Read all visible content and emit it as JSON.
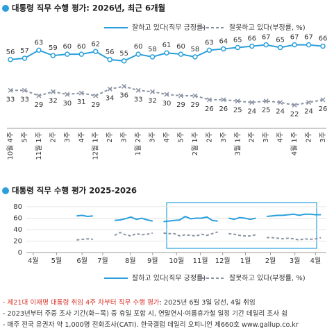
{
  "chart_data": [
    {
      "type": "line",
      "title": "대통령 직무 수행 평가: 2026년, 최근 6개월",
      "categories": [
        "10월 4주",
        "5주",
        "11월 1주",
        "2주",
        "3주",
        "4주",
        "12월 1주",
        "2주",
        "3주",
        "1월 2주",
        "3주",
        "4주",
        "5주",
        "2월 1주",
        "2주",
        "3주",
        "3월 1주",
        "2주",
        "3주",
        "4주",
        "4월 1주",
        "2주",
        "3주"
      ],
      "series": [
        {
          "name": "잘하고 있다(직무 긍정률)",
          "color": "#2a9fdc",
          "values": [
            56,
            57,
            63,
            59,
            60,
            60,
            62,
            56,
            55,
            60,
            58,
            61,
            60,
            58,
            63,
            64,
            65,
            66,
            67,
            65,
            67,
            67,
            66
          ]
        },
        {
          "name": "잘못하고 있다(부정률, %)",
          "color": "#8a94a3",
          "values": [
            33,
            33,
            29,
            32,
            30,
            31,
            29,
            34,
            36,
            33,
            32,
            30,
            29,
            29,
            26,
            26,
            25,
            24,
            25,
            24,
            22,
            24,
            26
          ]
        }
      ],
      "ylim": [
        15,
        72
      ]
    },
    {
      "type": "line",
      "title": "대통령 직무 수행 평가 2025-2026",
      "x": [
        0,
        1,
        2,
        3,
        4,
        5,
        6,
        7,
        8,
        9,
        10,
        11,
        12,
        13,
        14,
        15,
        16,
        17,
        18,
        19,
        20,
        21,
        22,
        23,
        24,
        25,
        26,
        27,
        28,
        29,
        30,
        31,
        32,
        33,
        34,
        35,
        36,
        37,
        38,
        39,
        40,
        41,
        42,
        43,
        44,
        45,
        46,
        47,
        48,
        49,
        50,
        51,
        52,
        53
      ],
      "xlim": [
        -1,
        54
      ],
      "xticks": [
        {
          "value": 0,
          "label": "4월"
        },
        {
          "value": 4.3,
          "label": "5월"
        },
        {
          "value": 9,
          "label": "6월"
        },
        {
          "value": 12.8,
          "label": "7월"
        },
        {
          "value": 17.9,
          "label": "8월"
        },
        {
          "value": 22,
          "label": "9월"
        },
        {
          "value": 26.4,
          "label": "10월"
        },
        {
          "value": 30.8,
          "label": "11월"
        },
        {
          "value": 34.9,
          "label": "12월"
        },
        {
          "value": 39.1,
          "label": "1월"
        },
        {
          "value": 43.7,
          "label": "2월"
        },
        {
          "value": 48.2,
          "label": "3월"
        },
        {
          "value": 52,
          "label": "4월"
        }
      ],
      "ylim": [
        0,
        80
      ],
      "yticks": [
        0,
        20,
        40,
        60,
        80
      ],
      "series": [
        {
          "name": "잘하고 있다(직무 긍정률)",
          "color": "#2a9fdc",
          "values": [
            null,
            null,
            null,
            null,
            null,
            null,
            null,
            null,
            64,
            65,
            63,
            64,
            null,
            null,
            null,
            56,
            57,
            59,
            62,
            58,
            60,
            57,
            55,
            null,
            54,
            55,
            56,
            57,
            63,
            59,
            60,
            60,
            62,
            56,
            55,
            null,
            60,
            58,
            61,
            60,
            58,
            60,
            null,
            63,
            64,
            65,
            65,
            66,
            67,
            65,
            67,
            67,
            66,
            66
          ]
        },
        {
          "name": "잘못하고 있다(부정률, %)",
          "color": "#8a94a3",
          "values": [
            null,
            null,
            null,
            null,
            null,
            null,
            null,
            null,
            22,
            23,
            24,
            23,
            null,
            null,
            null,
            30,
            35,
            31,
            29,
            33,
            31,
            32,
            34,
            null,
            34,
            33,
            33,
            29,
            31,
            30,
            29,
            32,
            30,
            33,
            36,
            null,
            33,
            32,
            30,
            29,
            29,
            31,
            null,
            26,
            26,
            25,
            24,
            25,
            24,
            22,
            24,
            23,
            24,
            26
          ]
        }
      ]
    }
  ],
  "notes": [
    [
      "- 제21대 이재명 대통령 취임 4주 차부터 직무 수행 평가",
      ": 2025년 6월 3일 당선, 4일 취임"
    ],
    [
      "- 2023년부터 주중 조사 기간(화~목) 중 휴일 포함 시, 연말연시·여름휴가철 일정 기간 데일리 조사 쉼"
    ],
    [
      "- 매주 전국 유권자 약 1,000명 전화조사(CATI). 한국갤럽 데일리 오피니언 제660호 www.gallup.co.kr"
    ]
  ]
}
